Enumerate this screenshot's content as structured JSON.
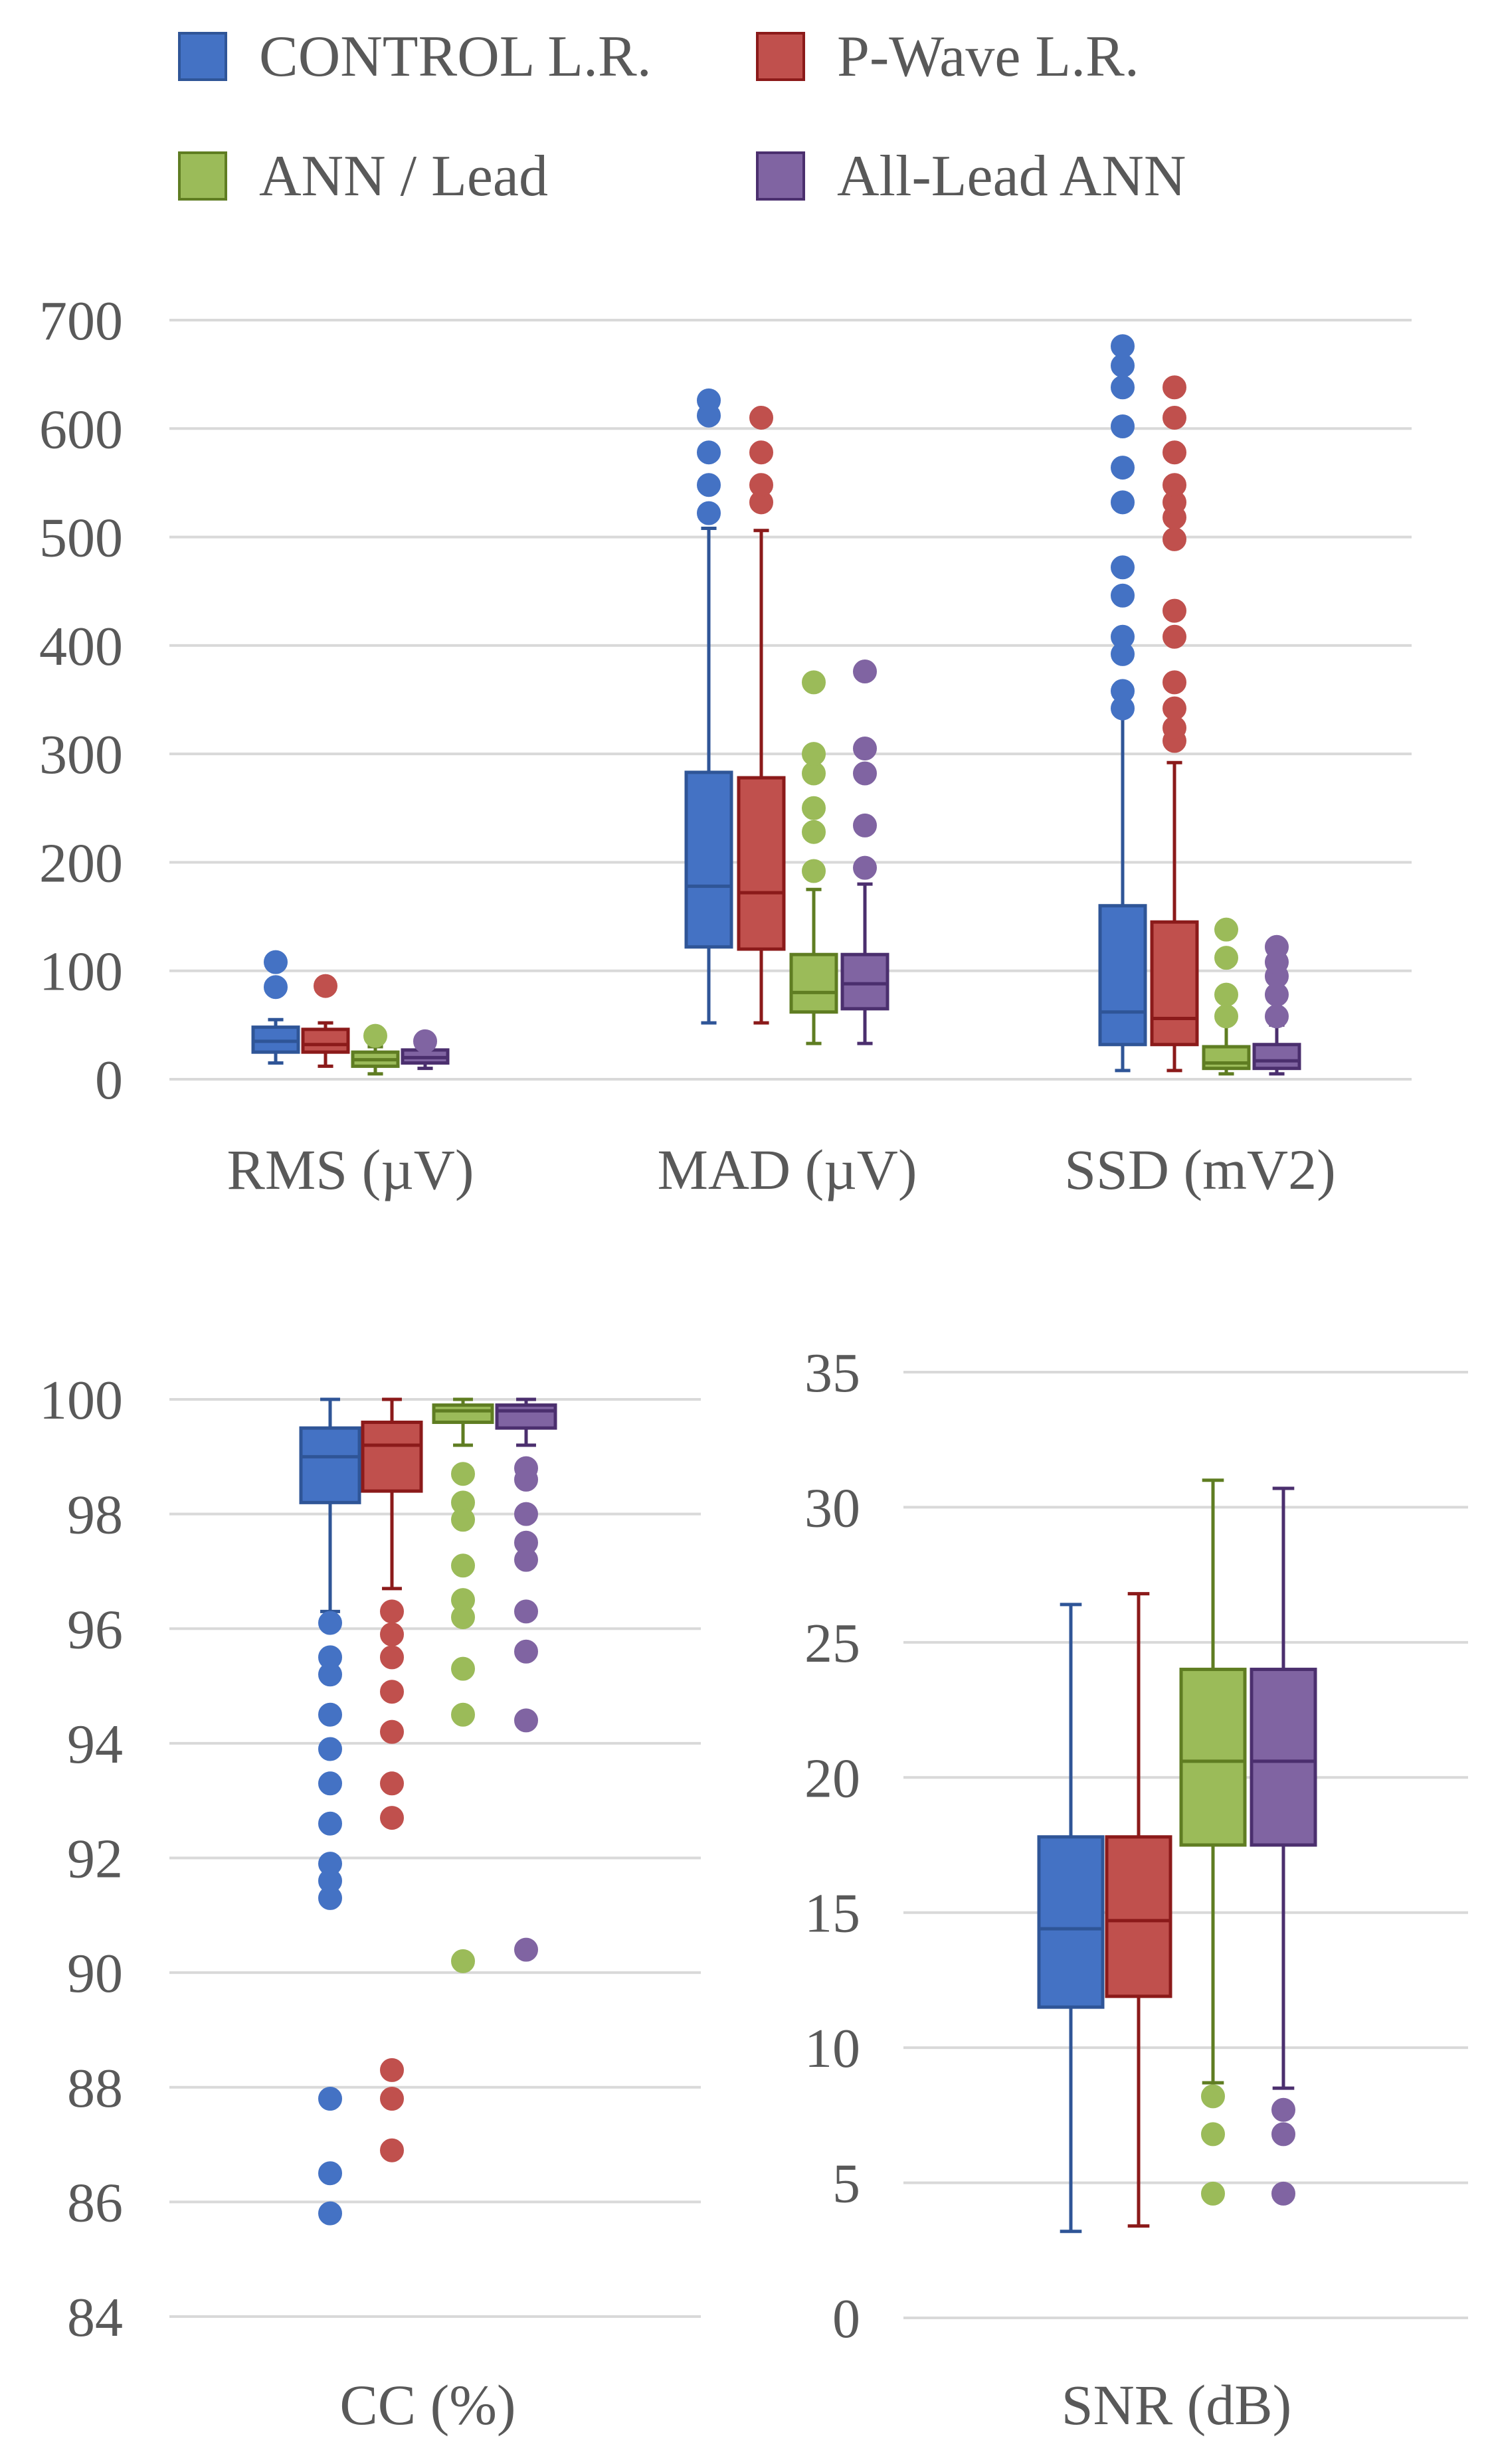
{
  "legend": [
    {
      "label": "CONTROL L.R.",
      "color": "#4472C4",
      "stroke": "#2F5597"
    },
    {
      "label": "P-Wave L.R.",
      "color": "#C0504D",
      "stroke": "#8B1A1A"
    },
    {
      "label": "ANN / Lead",
      "color": "#9BBB59",
      "stroke": "#5F7D22"
    },
    {
      "label": "All-Lead ANN",
      "color": "#8064A2",
      "stroke": "#4B2F6E"
    }
  ],
  "chart_data": [
    {
      "type": "boxplot",
      "title": "",
      "ylim": [
        0,
        700
      ],
      "yticks": [
        0,
        100,
        200,
        300,
        400,
        500,
        600,
        700
      ],
      "grid": true,
      "categories": [
        "RMS (µV)",
        "MAD (µV)",
        "SSD (mV2)"
      ],
      "series": [
        {
          "name": "CONTROL L.R.",
          "boxes": [
            {
              "min": 15,
              "q1": 25,
              "median": 35,
              "q3": 48,
              "max": 55,
              "outliers": [
                85,
                108
              ]
            },
            {
              "min": 52,
              "q1": 122,
              "median": 178,
              "q3": 283,
              "max": 508,
              "outliers": [
                522,
                548,
                578,
                612,
                626
              ]
            },
            {
              "min": 8,
              "q1": 32,
              "median": 62,
              "q3": 160,
              "max": 335,
              "outliers": [
                342,
                358,
                392,
                408,
                446,
                472,
                532,
                564,
                602,
                638,
                658,
                676
              ]
            }
          ]
        },
        {
          "name": "P-Wave L.R.",
          "boxes": [
            {
              "min": 12,
              "q1": 25,
              "median": 32,
              "q3": 46,
              "max": 52,
              "outliers": [
                86
              ]
            },
            {
              "min": 52,
              "q1": 120,
              "median": 172,
              "q3": 278,
              "max": 506,
              "outliers": [
                532,
                548,
                578,
                610
              ]
            },
            {
              "min": 8,
              "q1": 32,
              "median": 56,
              "q3": 145,
              "max": 292,
              "outliers": [
                312,
                324,
                342,
                366,
                408,
                432,
                498,
                518,
                532,
                548,
                578,
                610,
                638
              ]
            }
          ]
        },
        {
          "name": "ANN / Lead",
          "boxes": [
            {
              "min": 5,
              "q1": 12,
              "median": 18,
              "q3": 25,
              "max": 30,
              "outliers": [
                40
              ]
            },
            {
              "min": 33,
              "q1": 62,
              "median": 80,
              "q3": 115,
              "max": 175,
              "outliers": [
                192,
                228,
                250,
                282,
                300,
                366
              ]
            },
            {
              "min": 5,
              "q1": 10,
              "median": 15,
              "q3": 30,
              "max": 52,
              "outliers": [
                58,
                78,
                112,
                138
              ]
            }
          ]
        },
        {
          "name": "All-Lead ANN",
          "boxes": [
            {
              "min": 10,
              "q1": 15,
              "median": 20,
              "q3": 27,
              "max": 30,
              "outliers": [
                35
              ]
            },
            {
              "min": 33,
              "q1": 65,
              "median": 88,
              "q3": 115,
              "max": 180,
              "outliers": [
                195,
                234,
                282,
                305,
                376
              ]
            },
            {
              "min": 5,
              "q1": 10,
              "median": 17,
              "q3": 32,
              "max": 50,
              "outliers": [
                58,
                78,
                95,
                108,
                122
              ]
            }
          ]
        }
      ]
    },
    {
      "type": "boxplot",
      "title": "",
      "ylim": [
        84,
        100
      ],
      "yticks": [
        84,
        86,
        88,
        90,
        92,
        94,
        96,
        98,
        100
      ],
      "grid": true,
      "categories": [
        "CC (%)"
      ],
      "series": [
        {
          "name": "CONTROL L.R.",
          "boxes": [
            {
              "min": 96.3,
              "q1": 98.2,
              "median": 99.0,
              "q3": 99.5,
              "max": 100,
              "outliers": [
                96.1,
                95.5,
                95.2,
                94.5,
                93.9,
                93.3,
                92.6,
                91.9,
                91.6,
                91.3,
                87.8,
                86.5,
                85.8
              ]
            }
          ]
        },
        {
          "name": "P-Wave L.R.",
          "boxes": [
            {
              "min": 96.7,
              "q1": 98.4,
              "median": 99.2,
              "q3": 99.6,
              "max": 100,
              "outliers": [
                96.3,
                95.9,
                95.5,
                94.9,
                94.2,
                93.3,
                92.7,
                88.3,
                87.8,
                86.9
              ]
            }
          ]
        },
        {
          "name": "ANN / Lead",
          "boxes": [
            {
              "min": 99.2,
              "q1": 99.6,
              "median": 99.8,
              "q3": 99.9,
              "max": 100,
              "outliers": [
                98.7,
                98.2,
                97.9,
                97.1,
                96.5,
                96.2,
                95.3,
                94.5,
                90.2
              ]
            }
          ]
        },
        {
          "name": "All-Lead ANN",
          "boxes": [
            {
              "min": 99.2,
              "q1": 99.5,
              "median": 99.8,
              "q3": 99.9,
              "max": 100,
              "outliers": [
                98.8,
                98.6,
                98.0,
                97.5,
                97.2,
                96.3,
                95.6,
                94.4,
                90.4
              ]
            }
          ]
        }
      ]
    },
    {
      "type": "boxplot",
      "title": "",
      "ylim": [
        0,
        35
      ],
      "yticks": [
        0,
        5,
        10,
        15,
        20,
        25,
        30,
        35
      ],
      "grid": true,
      "categories": [
        "SNR (dB)"
      ],
      "series": [
        {
          "name": "CONTROL L.R.",
          "boxes": [
            {
              "min": 3.2,
              "q1": 11.5,
              "median": 14.4,
              "q3": 17.8,
              "max": 26.4,
              "outliers": []
            }
          ]
        },
        {
          "name": "P-Wave L.R.",
          "boxes": [
            {
              "min": 3.4,
              "q1": 11.9,
              "median": 14.7,
              "q3": 17.8,
              "max": 26.8,
              "outliers": []
            }
          ]
        },
        {
          "name": "ANN / Lead",
          "boxes": [
            {
              "min": 8.7,
              "q1": 17.5,
              "median": 20.6,
              "q3": 24.0,
              "max": 31.0,
              "outliers": [
                8.2,
                6.8,
                4.6
              ]
            }
          ]
        },
        {
          "name": "All-Lead ANN",
          "boxes": [
            {
              "min": 8.5,
              "q1": 17.5,
              "median": 20.6,
              "q3": 24.0,
              "max": 30.7,
              "outliers": [
                7.7,
                6.8,
                4.6
              ]
            }
          ]
        }
      ]
    }
  ]
}
